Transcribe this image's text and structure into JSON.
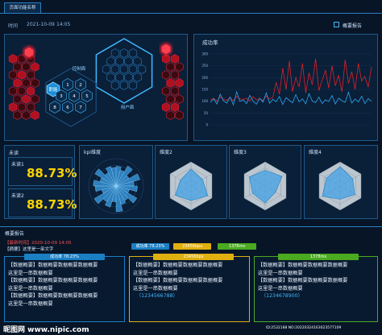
{
  "header": {
    "tab": "页面功能名称",
    "time_label": "时间",
    "date": "2021-10-09",
    "time": "14:05",
    "report_button": "概要报告"
  },
  "hex_panel": {
    "labels": [
      "控制面",
      "职能",
      "用户面"
    ],
    "numbers": [
      "1",
      "2",
      "3",
      "4",
      "5",
      "6",
      "7",
      "8"
    ]
  },
  "success_chart": {
    "type": "line",
    "title": "成功率",
    "ylim": [
      0,
      300
    ],
    "yticks": [
      0,
      50,
      100,
      150,
      200,
      250,
      300
    ],
    "grid": true,
    "series": [
      {
        "color": "#e0202a",
        "values": [
          105,
          112,
          100,
          118,
          108,
          104,
          115,
          102,
          120,
          110,
          107,
          113,
          101,
          119,
          106,
          111,
          103,
          122,
          109,
          116,
          180,
          130,
          240,
          150,
          270,
          140,
          200,
          160,
          260,
          135,
          220,
          170,
          280,
          145,
          190,
          230,
          155,
          250,
          165,
          210,
          140,
          275,
          175,
          225,
          150,
          260,
          185,
          205,
          160,
          245
        ]
      },
      {
        "color": "#2aa8f0",
        "values": [
          95,
          110,
          88,
          130,
          102,
          92,
          118,
          85,
          140,
          99,
          105,
          90,
          125,
          100,
          87,
          112,
          96,
          135,
          91,
          108,
          98,
          120,
          86,
          115,
          104,
          93,
          128,
          97,
          110,
          89,
          132,
          101,
          94,
          117,
          90,
          106,
          99,
          124,
          88,
          113,
          102,
          95,
          138,
          92,
          109,
          97,
          121,
          90,
          111,
          100
        ]
      }
    ]
  },
  "unread": {
    "title": "未读",
    "items": [
      {
        "label": "未读1",
        "value": "88.73%"
      },
      {
        "label": "未读2",
        "value": "88.73%"
      }
    ]
  },
  "kpi": {
    "type": "polar",
    "title": "kpi维度",
    "rlim": [
      0,
      100
    ],
    "values": [
      72,
      60,
      85,
      55,
      90,
      66,
      78,
      50,
      88,
      62,
      70,
      94,
      58,
      80,
      67,
      92,
      54,
      76,
      83,
      61,
      89,
      57,
      74,
      68
    ]
  },
  "radars": [
    {
      "type": "radar",
      "title": "维度2",
      "rlim": [
        0,
        100
      ],
      "values": [
        70,
        55,
        80,
        60,
        75,
        50
      ]
    },
    {
      "type": "radar",
      "title": "维度3",
      "rlim": [
        0,
        100
      ],
      "values": [
        65,
        80,
        50,
        70,
        60,
        75
      ]
    },
    {
      "type": "radar",
      "title": "维度4",
      "rlim": [
        0,
        100
      ],
      "values": [
        80,
        60,
        70,
        55,
        85,
        65
      ]
    }
  ],
  "report": {
    "title": "概要报告",
    "latest": "【最新时间】2020-10-09 14:05",
    "summary": "【摘要】这里是一串文字",
    "badges": [
      "成功率 78.23%",
      "23456bps",
      "1378ms"
    ],
    "cards": [
      {
        "badge": "成功率 78.23%",
        "lines": [
          "【数据概要】数据概要数据概要数据概要",
          "这里是一串数据概要",
          "【数据概要】数据概要数据概要数据概要",
          "这里是一串数据概要",
          "【数据概要】数据概要数据概要数据概要",
          "这里是一串数据概要"
        ]
      },
      {
        "badge": "23456bps",
        "lines": [
          "【数据概要】数据概要数据概要数据概要",
          "这里是一串数据概要",
          "【数据概要】数据概要数据概要数据概要",
          "这里是一串数据概要",
          "（1234566788）"
        ]
      },
      {
        "badge": "1378ms",
        "lines": [
          "【数据概要】数据概要数据概要数据概要",
          "这里是一串数据概要",
          "【数据概要】数据概要数据概要数据概要",
          "这里是一串数据概要",
          "（1234678900）"
        ]
      }
    ]
  },
  "watermark": {
    "site": "昵图网 www.nipic.com",
    "id": "ID:2532188 NO:20220324163023577109"
  }
}
